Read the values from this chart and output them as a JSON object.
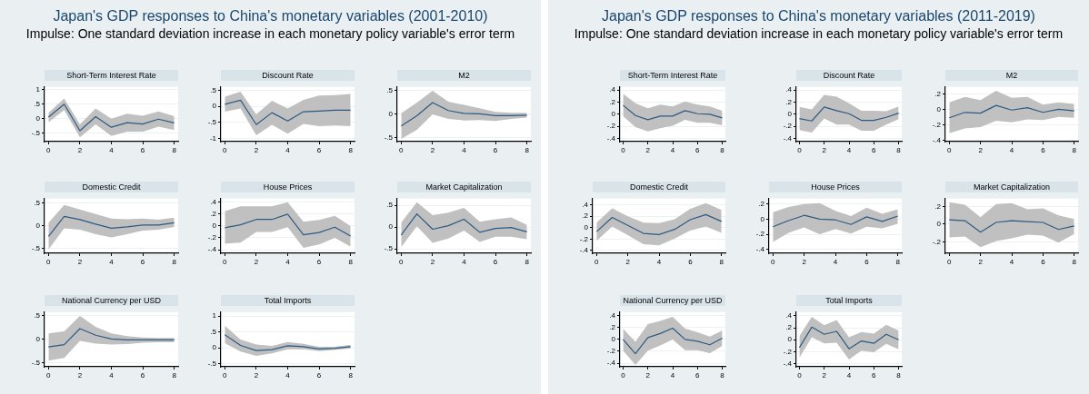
{
  "chart_data": [
    {
      "type": "other",
      "title": "Japan's GDP responses to China's monetary variables (2001-2010)",
      "subtitle": "Impulse: One standard deviation increase in each monetary policy variable's error term"
    },
    {
      "type": "line",
      "title": "Short-Term Interest Rate",
      "x": [
        0,
        1,
        2,
        3,
        4,
        5,
        6,
        7,
        8
      ],
      "xlim": [
        -0.25,
        8.25
      ],
      "xticks": [
        0,
        2,
        4,
        6,
        8
      ],
      "ylim": [
        -0.8,
        1.1
      ],
      "yticks": [
        {
          "value": -0.5,
          "label": "-.5"
        },
        0,
        {
          "value": 0.5,
          "label": ".5"
        },
        1
      ],
      "grid": "y",
      "series": [
        {
          "color": "#2c5a82",
          "values": [
            0.05,
            0.5,
            -0.42,
            0.07,
            -0.3,
            -0.14,
            -0.19,
            -0.02,
            -0.15
          ],
          "upper": [
            0.2,
            0.7,
            -0.2,
            0.35,
            0.0,
            0.17,
            0.1,
            0.25,
            0.08
          ],
          "lower": [
            -0.13,
            0.3,
            -0.65,
            -0.2,
            -0.6,
            -0.45,
            -0.45,
            -0.28,
            -0.4
          ]
        }
      ]
    },
    {
      "type": "line",
      "title": "Discount Rate",
      "x": [
        0,
        1,
        2,
        3,
        4,
        5,
        6,
        7,
        8
      ],
      "xlim": [
        -0.25,
        8.25
      ],
      "xticks": [
        0,
        2,
        4,
        6,
        8
      ],
      "ylim": [
        -1.1,
        0.6
      ],
      "yticks": [
        -1,
        {
          "value": -0.5,
          "label": "-.5"
        },
        0,
        {
          "value": 0.5,
          "label": ".5"
        }
      ],
      "grid": "y",
      "series": [
        {
          "color": "#2c5a82",
          "values": [
            0.06,
            0.19,
            -0.57,
            -0.2,
            -0.46,
            -0.17,
            -0.15,
            -0.12,
            -0.12
          ],
          "upper": [
            0.3,
            0.45,
            -0.25,
            0.17,
            -0.07,
            0.2,
            0.33,
            0.35,
            0.38
          ],
          "lower": [
            -0.17,
            -0.07,
            -0.9,
            -0.58,
            -0.85,
            -0.55,
            -0.62,
            -0.6,
            -0.62
          ]
        }
      ]
    },
    {
      "type": "line",
      "title": "M2",
      "x": [
        0,
        1,
        2,
        3,
        4,
        5,
        6,
        7,
        8
      ],
      "xlim": [
        -0.25,
        8.25
      ],
      "xticks": [
        0,
        2,
        4,
        6,
        8
      ],
      "ylim": [
        -0.58,
        0.58
      ],
      "yticks": [
        {
          "value": -0.5,
          "label": "-.5"
        },
        0,
        {
          "value": 0.5,
          "label": ".5"
        }
      ],
      "grid": "y",
      "series": [
        {
          "color": "#2c5a82",
          "values": [
            -0.25,
            -0.03,
            0.25,
            0.08,
            0.02,
            0.01,
            -0.03,
            -0.03,
            -0.02
          ],
          "upper": [
            0.02,
            0.25,
            0.5,
            0.27,
            0.2,
            0.13,
            0.05,
            0.03,
            0.03
          ],
          "lower": [
            -0.52,
            -0.33,
            0.0,
            -0.1,
            -0.13,
            -0.12,
            -0.14,
            -0.1,
            -0.07
          ]
        }
      ]
    },
    {
      "type": "line",
      "title": "Domestic Credit",
      "x": [
        0,
        1,
        2,
        3,
        4,
        5,
        6,
        7,
        8
      ],
      "xlim": [
        -0.25,
        8.25
      ],
      "xticks": [
        0,
        2,
        4,
        6,
        8
      ],
      "ylim": [
        -0.6,
        0.6
      ],
      "yticks": [
        {
          "value": -0.5,
          "label": "-.5"
        },
        0,
        {
          "value": 0.5,
          "label": ".5"
        }
      ],
      "grid": "y",
      "series": [
        {
          "color": "#2c5a82",
          "values": [
            -0.23,
            0.21,
            0.14,
            0.04,
            -0.05,
            -0.02,
            0.02,
            0.02,
            0.07
          ],
          "upper": [
            0.07,
            0.46,
            0.36,
            0.26,
            0.16,
            0.15,
            0.16,
            0.14,
            0.18
          ],
          "lower": [
            -0.52,
            -0.05,
            -0.08,
            -0.18,
            -0.25,
            -0.18,
            -0.1,
            -0.08,
            -0.02
          ]
        }
      ]
    },
    {
      "type": "line",
      "title": "House Prices",
      "x": [
        0,
        1,
        2,
        3,
        4,
        5,
        6,
        7,
        8
      ],
      "xlim": [
        -0.25,
        8.25
      ],
      "xticks": [
        0,
        2,
        4,
        6,
        8
      ],
      "ylim": [
        -0.46,
        0.46
      ],
      "yticks": [
        {
          "value": -0.4,
          "label": "-.4"
        },
        {
          "value": -0.2,
          "label": "-.2"
        },
        0,
        {
          "value": 0.2,
          "label": ".2"
        },
        {
          "value": 0.4,
          "label": ".4"
        }
      ],
      "grid": "y",
      "series": [
        {
          "color": "#2c5a82",
          "values": [
            -0.03,
            0.02,
            0.11,
            0.11,
            0.2,
            -0.15,
            -0.11,
            -0.02,
            -0.17
          ],
          "upper": [
            0.25,
            0.33,
            0.33,
            0.33,
            0.4,
            0.07,
            0.1,
            0.17,
            0.0
          ],
          "lower": [
            -0.3,
            -0.28,
            -0.1,
            -0.1,
            -0.02,
            -0.37,
            -0.31,
            -0.2,
            -0.35
          ]
        }
      ]
    },
    {
      "type": "line",
      "title": "Market Capitalization",
      "x": [
        0,
        1,
        2,
        3,
        4,
        5,
        6,
        7,
        8
      ],
      "xlim": [
        -0.25,
        8.25
      ],
      "xticks": [
        0,
        2,
        4,
        6,
        8
      ],
      "ylim": [
        -0.6,
        0.65
      ],
      "yticks": [
        {
          "value": -0.5,
          "label": "-.5"
        },
        0,
        {
          "value": 0.5,
          "label": ".5"
        }
      ],
      "grid": "y",
      "series": [
        {
          "color": "#2c5a82",
          "values": [
            -0.18,
            0.3,
            -0.05,
            0.03,
            0.18,
            -0.12,
            -0.03,
            -0.01,
            -0.11
          ],
          "upper": [
            0.1,
            0.57,
            0.27,
            0.33,
            0.44,
            0.12,
            0.18,
            0.22,
            0.05
          ],
          "lower": [
            -0.46,
            0.02,
            -0.36,
            -0.26,
            -0.08,
            -0.34,
            -0.22,
            -0.22,
            -0.28
          ]
        }
      ]
    },
    {
      "type": "line",
      "title": "National Currency per USD",
      "x": [
        0,
        1,
        2,
        3,
        4,
        5,
        6,
        7,
        8
      ],
      "xlim": [
        -0.25,
        8.25
      ],
      "xticks": [
        0,
        2,
        4,
        6,
        8
      ],
      "ylim": [
        -0.58,
        0.58
      ],
      "yticks": [
        {
          "value": -0.5,
          "label": "-.5"
        },
        0,
        {
          "value": 0.5,
          "label": ".5"
        }
      ],
      "grid": "y",
      "series": [
        {
          "color": "#2c5a82",
          "values": [
            -0.16,
            -0.11,
            0.23,
            0.09,
            0.01,
            -0.01,
            -0.01,
            -0.01,
            -0.01
          ],
          "upper": [
            0.13,
            0.17,
            0.5,
            0.27,
            0.13,
            0.07,
            0.04,
            0.03,
            0.03
          ],
          "lower": [
            -0.45,
            -0.39,
            -0.03,
            -0.09,
            -0.11,
            -0.1,
            -0.07,
            -0.06,
            -0.06
          ]
        }
      ]
    },
    {
      "type": "line",
      "title": "Total Imports",
      "x": [
        0,
        1,
        2,
        3,
        4,
        5,
        6,
        7,
        8
      ],
      "xlim": [
        -0.25,
        8.25
      ],
      "xticks": [
        0,
        2,
        4,
        6,
        8
      ],
      "ylim": [
        -0.6,
        1.12
      ],
      "yticks": [
        {
          "value": -0.5,
          "label": "-.5"
        },
        0,
        {
          "value": 0.5,
          "label": ".5"
        },
        1
      ],
      "grid": "y",
      "series": [
        {
          "color": "#2c5a82",
          "values": [
            0.41,
            0.07,
            -0.09,
            -0.06,
            0.06,
            0.03,
            -0.04,
            -0.02,
            0.03
          ],
          "upper": [
            0.69,
            0.26,
            0.1,
            0.06,
            0.18,
            0.12,
            0.03,
            0.03,
            0.09
          ],
          "lower": [
            0.14,
            -0.12,
            -0.26,
            -0.18,
            -0.05,
            -0.05,
            -0.11,
            -0.07,
            -0.02
          ]
        }
      ]
    },
    {
      "type": "other",
      "title": "Japan's GDP responses to China's monetary variables (2011-2019)",
      "subtitle": "Impulse: One standard deviation increase in each monetary policy variable's error term"
    },
    {
      "type": "line",
      "title": "Short-Term Interest Rate",
      "x": [
        0,
        1,
        2,
        3,
        4,
        5,
        6,
        7,
        8
      ],
      "xlim": [
        -0.25,
        8.25
      ],
      "xticks": [
        0,
        2,
        4,
        6,
        8
      ],
      "ylim": [
        -0.45,
        0.45
      ],
      "yticks": [
        {
          "value": -0.4,
          "label": "-.4"
        },
        {
          "value": -0.2,
          "label": "-.2"
        },
        0,
        {
          "value": 0.2,
          "label": ".2"
        },
        {
          "value": 0.4,
          "label": ".4"
        }
      ],
      "grid": "y",
      "series": [
        {
          "color": "#2c5a82",
          "values": [
            0.15,
            -0.02,
            -0.09,
            -0.03,
            -0.03,
            0.06,
            0.01,
            0.0,
            -0.06
          ],
          "upper": [
            0.34,
            0.18,
            0.1,
            0.16,
            0.13,
            0.21,
            0.16,
            0.13,
            0.06
          ],
          "lower": [
            -0.03,
            -0.21,
            -0.28,
            -0.23,
            -0.19,
            -0.09,
            -0.14,
            -0.14,
            -0.18
          ]
        }
      ]
    },
    {
      "type": "line",
      "title": "Discount Rate",
      "x": [
        0,
        1,
        2,
        3,
        4,
        5,
        6,
        7,
        8
      ],
      "xlim": [
        -0.25,
        8.25
      ],
      "xticks": [
        0,
        2,
        4,
        6,
        8
      ],
      "ylim": [
        -0.45,
        0.45
      ],
      "yticks": [
        {
          "value": -0.4,
          "label": "-.4"
        },
        {
          "value": -0.2,
          "label": "-.2"
        },
        0,
        {
          "value": 0.2,
          "label": ".2"
        },
        {
          "value": 0.4,
          "label": ".4"
        }
      ],
      "grid": "y",
      "series": [
        {
          "color": "#2c5a82",
          "values": [
            -0.07,
            -0.11,
            0.12,
            0.06,
            0.01,
            -0.1,
            -0.1,
            -0.05,
            0.02
          ],
          "upper": [
            0.12,
            0.08,
            0.32,
            0.29,
            0.18,
            0.06,
            0.06,
            0.05,
            0.13
          ],
          "lower": [
            -0.26,
            -0.3,
            -0.07,
            -0.17,
            -0.17,
            -0.27,
            -0.27,
            -0.17,
            -0.08
          ]
        }
      ]
    },
    {
      "type": "line",
      "title": "M2",
      "x": [
        0,
        1,
        2,
        3,
        4,
        5,
        6,
        7,
        8
      ],
      "xlim": [
        -0.25,
        8.25
      ],
      "xticks": [
        0,
        2,
        4,
        6,
        8
      ],
      "ylim": [
        -0.42,
        0.29
      ],
      "yticks": [
        {
          "value": -0.4,
          "label": "-.4"
        },
        {
          "value": -0.2,
          "label": "-.2"
        },
        0,
        {
          "value": 0.2,
          "label": ".2"
        }
      ],
      "grid": "y",
      "series": [
        {
          "color": "#2c5a82",
          "values": [
            -0.11,
            -0.04,
            -0.05,
            0.05,
            -0.01,
            0.02,
            -0.04,
            0.0,
            -0.02
          ],
          "upper": [
            0.09,
            0.16,
            0.12,
            0.24,
            0.15,
            0.16,
            0.06,
            0.09,
            0.07
          ],
          "lower": [
            -0.31,
            -0.25,
            -0.23,
            -0.15,
            -0.17,
            -0.13,
            -0.14,
            -0.1,
            -0.11
          ]
        }
      ]
    },
    {
      "type": "line",
      "title": "Domestic Credit",
      "x": [
        0,
        1,
        2,
        3,
        4,
        5,
        6,
        7,
        8
      ],
      "xlim": [
        -0.25,
        8.25
      ],
      "xticks": [
        0,
        2,
        4,
        6,
        8
      ],
      "ylim": [
        -0.45,
        0.51
      ],
      "yticks": [
        {
          "value": -0.4,
          "label": "-.4"
        },
        {
          "value": -0.2,
          "label": "-.2"
        },
        0,
        {
          "value": 0.2,
          "label": ".2"
        },
        {
          "value": 0.4,
          "label": ".4"
        }
      ],
      "grid": "y",
      "series": [
        {
          "color": "#2c5a82",
          "values": [
            -0.07,
            0.18,
            0.04,
            -0.1,
            -0.12,
            -0.03,
            0.14,
            0.23,
            0.11
          ],
          "upper": [
            0.09,
            0.34,
            0.2,
            0.09,
            0.08,
            0.15,
            0.33,
            0.43,
            0.31
          ],
          "lower": [
            -0.23,
            0.02,
            -0.13,
            -0.29,
            -0.31,
            -0.19,
            -0.05,
            0.02,
            -0.09
          ]
        }
      ]
    },
    {
      "type": "line",
      "title": "House Prices",
      "x": [
        0,
        1,
        2,
        3,
        4,
        5,
        6,
        7,
        8
      ],
      "xlim": [
        -0.25,
        8.25
      ],
      "xticks": [
        0,
        2,
        4,
        6,
        8
      ],
      "ylim": [
        -0.45,
        0.27
      ],
      "yticks": [
        {
          "value": -0.4,
          "label": "-.4"
        },
        {
          "value": -0.2,
          "label": "-.2"
        },
        0,
        {
          "value": 0.2,
          "label": ".2"
        }
      ],
      "grid": "y",
      "series": [
        {
          "color": "#2c5a82",
          "values": [
            -0.1,
            -0.02,
            0.05,
            0.0,
            -0.01,
            -0.07,
            0.03,
            -0.03,
            0.04
          ],
          "upper": [
            0.09,
            0.16,
            0.2,
            0.21,
            0.11,
            0.04,
            0.15,
            0.07,
            0.13
          ],
          "lower": [
            -0.3,
            -0.18,
            -0.11,
            -0.2,
            -0.13,
            -0.19,
            -0.1,
            -0.12,
            -0.06
          ]
        }
      ]
    },
    {
      "type": "line",
      "title": "Market Capitalization",
      "x": [
        0,
        1,
        2,
        3,
        4,
        5,
        6,
        7,
        8
      ],
      "xlim": [
        -0.25,
        8.25
      ],
      "xticks": [
        0,
        2,
        4,
        6,
        8
      ],
      "ylim": [
        -0.33,
        0.29
      ],
      "yticks": [
        {
          "value": -0.2,
          "label": "-.2"
        },
        0,
        {
          "value": 0.2,
          "label": ".2"
        }
      ],
      "grid": "y",
      "series": [
        {
          "color": "#2c5a82",
          "values": [
            0.05,
            0.04,
            -0.09,
            0.02,
            0.04,
            0.03,
            0.02,
            -0.06,
            -0.02
          ],
          "upper": [
            0.25,
            0.22,
            0.08,
            0.23,
            0.24,
            0.17,
            0.18,
            0.1,
            0.06
          ],
          "lower": [
            -0.15,
            -0.14,
            -0.26,
            -0.19,
            -0.16,
            -0.12,
            -0.13,
            -0.21,
            -0.11
          ]
        }
      ]
    },
    {
      "type": "line",
      "title": "National Currency per USD",
      "x": [
        0,
        1,
        2,
        3,
        4,
        5,
        6,
        7,
        8
      ],
      "xlim": [
        -0.25,
        8.25
      ],
      "xticks": [
        0,
        2,
        4,
        6,
        8
      ],
      "ylim": [
        -0.46,
        0.46
      ],
      "yticks": [
        {
          "value": -0.4,
          "label": "-.4"
        },
        {
          "value": -0.2,
          "label": "-.2"
        },
        0,
        {
          "value": 0.2,
          "label": ".2"
        },
        {
          "value": 0.4,
          "label": ".4"
        }
      ],
      "grid": "y",
      "series": [
        {
          "color": "#2c5a82",
          "values": [
            0.0,
            -0.24,
            0.03,
            0.1,
            0.19,
            0.0,
            -0.03,
            -0.09,
            0.02
          ],
          "upper": [
            0.18,
            -0.04,
            0.26,
            0.31,
            0.38,
            0.18,
            0.12,
            0.05,
            0.15
          ],
          "lower": [
            -0.19,
            -0.43,
            -0.19,
            -0.1,
            0.0,
            -0.18,
            -0.18,
            -0.23,
            -0.11
          ]
        }
      ]
    },
    {
      "type": "line",
      "title": "Total Imports",
      "x": [
        0,
        1,
        2,
        3,
        4,
        5,
        6,
        7,
        8
      ],
      "xlim": [
        -0.25,
        8.25
      ],
      "xticks": [
        0,
        2,
        4,
        6,
        8
      ],
      "ylim": [
        -0.45,
        0.46
      ],
      "yticks": [
        {
          "value": -0.4,
          "label": "-.4"
        },
        {
          "value": -0.2,
          "label": "-.2"
        },
        0,
        {
          "value": 0.2,
          "label": ".2"
        },
        {
          "value": 0.4,
          "label": ".4"
        }
      ],
      "grid": "y",
      "series": [
        {
          "color": "#2c5a82",
          "values": [
            -0.13,
            0.21,
            0.09,
            0.14,
            -0.15,
            -0.02,
            -0.06,
            0.09,
            0.0
          ],
          "upper": [
            0.06,
            0.38,
            0.24,
            0.33,
            0.04,
            0.13,
            0.1,
            0.25,
            0.15
          ],
          "lower": [
            -0.3,
            0.04,
            -0.06,
            -0.05,
            -0.33,
            -0.18,
            -0.21,
            -0.07,
            -0.16
          ]
        }
      ]
    }
  ]
}
